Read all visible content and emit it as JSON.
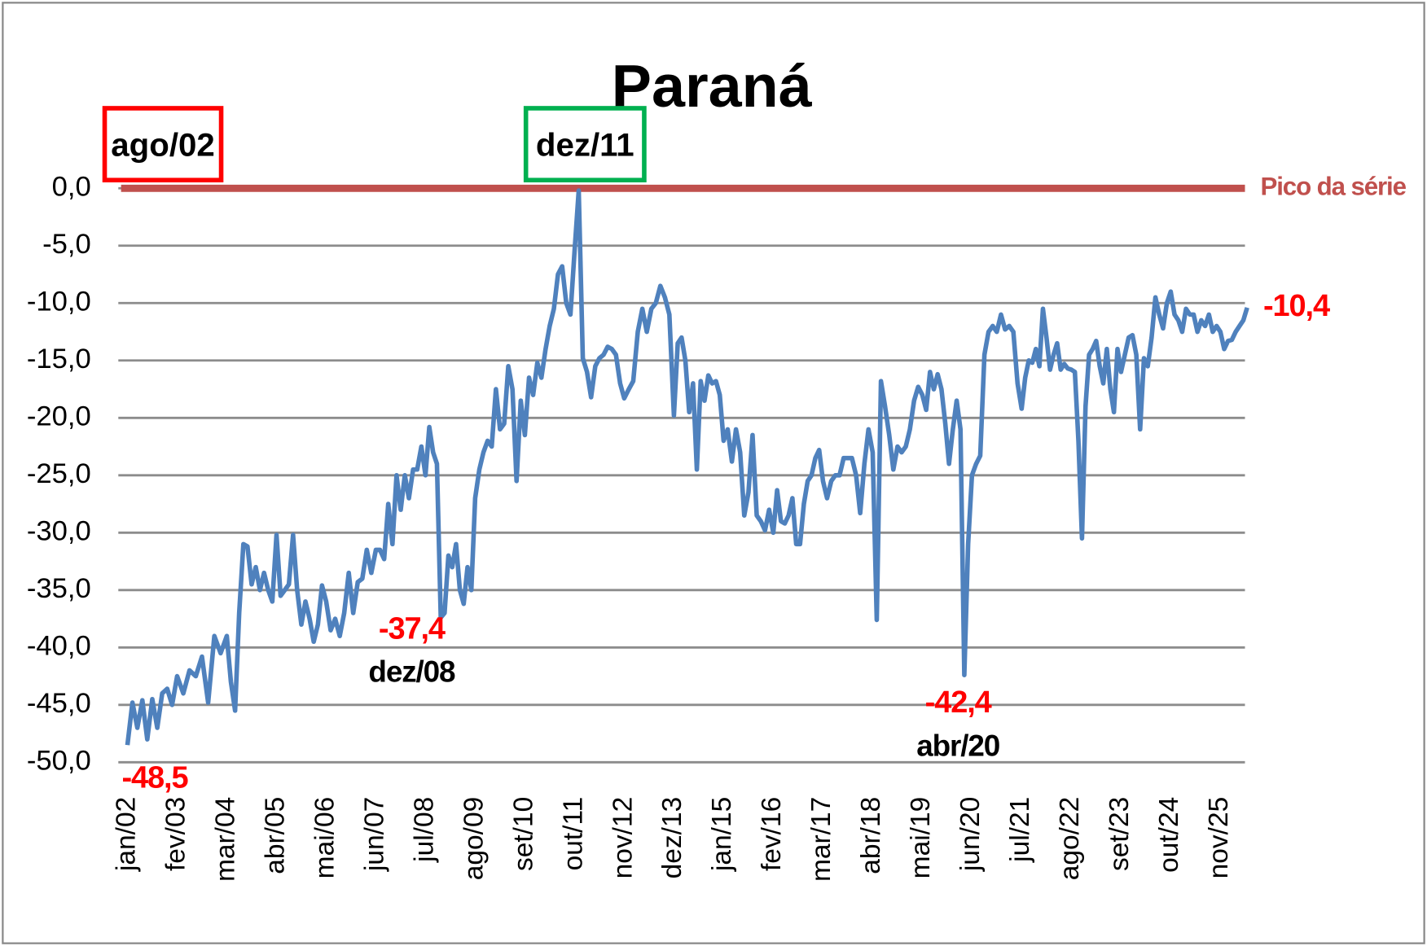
{
  "chart_data": {
    "type": "line",
    "title": "Paraná",
    "categories": [
      "jan/02",
      null,
      null,
      null,
      null,
      null,
      null,
      null,
      null,
      null,
      "fev/03",
      null,
      null,
      null,
      null,
      null,
      null,
      null,
      "mar/04",
      null,
      null,
      null,
      null,
      null,
      null,
      null,
      null,
      null,
      null,
      null,
      "abr/05",
      null,
      null,
      null,
      null,
      null,
      null,
      null,
      null,
      null,
      null,
      null,
      "mai/06",
      null,
      null,
      null,
      null,
      null,
      null,
      null,
      null,
      null,
      null,
      "jun/07",
      null,
      null,
      null,
      null,
      null,
      null,
      null,
      null,
      null,
      null,
      null,
      "jul/08",
      null,
      null,
      null,
      null,
      null,
      null,
      null,
      null,
      null,
      null,
      null,
      null,
      "ago/09",
      null,
      null,
      null,
      null,
      null,
      null,
      null,
      null,
      null,
      null,
      null,
      "set/10",
      null,
      null,
      null,
      null,
      null,
      null,
      null,
      null,
      null,
      null,
      null,
      "out/11",
      null,
      null,
      null,
      null,
      null,
      null,
      null,
      null,
      null,
      null,
      null,
      "nov/12",
      null,
      null,
      null,
      null,
      null,
      null,
      null,
      null,
      null,
      null,
      "dez/13",
      null,
      null,
      null,
      null,
      null,
      null,
      null,
      null,
      null,
      null,
      null,
      null,
      "jan/15",
      null,
      null,
      null,
      null,
      null,
      null,
      null,
      null,
      null,
      null,
      null,
      "fev/16",
      null,
      null,
      null,
      null,
      null,
      null,
      null,
      null,
      null,
      null,
      null,
      null,
      "mar/17",
      null,
      null,
      null,
      null,
      null,
      null,
      null,
      null,
      null,
      null,
      null,
      "abr/18",
      null,
      null,
      null,
      null,
      null,
      null,
      null,
      null,
      null,
      null,
      null,
      "mai/19",
      null,
      null,
      null,
      null,
      null,
      null,
      null,
      null,
      null,
      null,
      null,
      null,
      "jun/20",
      null,
      null,
      null,
      null,
      null,
      null,
      null,
      null,
      null,
      null,
      null,
      "jul/21",
      null,
      null,
      null,
      null,
      null,
      null,
      null,
      null,
      null,
      null,
      null,
      null,
      null,
      "ago/22",
      null,
      null,
      null,
      null,
      null,
      null,
      null,
      null,
      null,
      null,
      null,
      null,
      null,
      "set/23",
      null,
      null,
      null,
      null,
      null,
      null,
      null,
      null,
      null,
      null,
      null,
      null,
      "out/24",
      null,
      null,
      null,
      null,
      null,
      null,
      null,
      null,
      null,
      null,
      null,
      null,
      "nov/25",
      null,
      null,
      null,
      null,
      null,
      null,
      null
    ],
    "series": [
      {
        "color": "#4f81bd",
        "values": [
          -48.5,
          -44.8,
          -47,
          -44.6,
          -48,
          -44.5,
          -47,
          -44,
          -43.6,
          -45,
          -42.5,
          -44,
          -42,
          -42.5,
          -40.8,
          -44.8,
          -39,
          -40.5,
          -39,
          -43,
          -45.5,
          -37,
          -31,
          -31.2,
          -34.5,
          -33,
          -35,
          -33.5,
          -35,
          -36,
          -30.2,
          -35.5,
          -35,
          -34.5,
          -30.2,
          -35,
          -38,
          -36,
          -37.5,
          -39.5,
          -38,
          -34.6,
          -36,
          -38.5,
          -37.5,
          -39,
          -37,
          -33.5,
          -37,
          -34.3,
          -34,
          -31.5,
          -33.5,
          -31.5,
          -31.5,
          -32.3,
          -27.5,
          -31,
          -25,
          -28,
          -25,
          -27,
          -24.5,
          -24.5,
          -22.5,
          -25,
          -20.8,
          -23,
          -24,
          -37.4,
          -37,
          -32,
          -33,
          -31,
          -35,
          -36.2,
          -33,
          -35,
          -27,
          -24.5,
          -23,
          -22,
          -22.5,
          -17.5,
          -21,
          -20.5,
          -15.5,
          -17.5,
          -25.5,
          -18.5,
          -21.5,
          -16.5,
          -18,
          -15.2,
          -16.5,
          -14,
          -12,
          -10.5,
          -7.5,
          -6.8,
          -10,
          -11,
          -5.5,
          -0.2,
          -14.8,
          -16,
          -18.2,
          -15.5,
          -14.8,
          -14.5,
          -13.8,
          -14,
          -14.5,
          -17,
          -18.3,
          -17.5,
          -16.8,
          -12.5,
          -10.5,
          -12.5,
          -10.5,
          -10,
          -8.5,
          -9.5,
          -11,
          -19.8,
          -13.5,
          -13,
          -15,
          -19.5,
          -17,
          -24.5,
          -16.8,
          -18.5,
          -16.3,
          -17,
          -16.8,
          -18,
          -22,
          -21,
          -23.8,
          -21,
          -23,
          -28.5,
          -26.5,
          -21.5,
          -28.5,
          -29,
          -29.8,
          -28,
          -30,
          -26.3,
          -29,
          -29.2,
          -28.5,
          -27,
          -31,
          -31,
          -27.5,
          -25.5,
          -25,
          -23.5,
          -22.8,
          -25.5,
          -27,
          -25.5,
          -25,
          -25,
          -23.5,
          -23.5,
          -23.5,
          -25,
          -28.3,
          -24,
          -21,
          -23,
          -37.6,
          -16.8,
          -19,
          -21.5,
          -24.5,
          -22.5,
          -23,
          -22.5,
          -21,
          -18.5,
          -17.3,
          -18,
          -19.3,
          -16,
          -17.5,
          -16.2,
          -17.5,
          -20.5,
          -24,
          -21,
          -18.5,
          -21,
          -42.4,
          -31,
          -25,
          -24,
          -23.3,
          -14.5,
          -12.5,
          -12,
          -12.5,
          -11,
          -12.3,
          -12,
          -12.5,
          -17,
          -19.2,
          -16.5,
          -15,
          -15.2,
          -14,
          -15.5,
          -10.5,
          -13,
          -15.8,
          -14.5,
          -13.5,
          -15.8,
          -15.3,
          -15.7,
          -15.8,
          -16,
          -22,
          -30.5,
          -19,
          -14.5,
          -14,
          -13.3,
          -15.5,
          -17,
          -14,
          -17.5,
          -19.5,
          -14,
          -16,
          -14.5,
          -13,
          -12.8,
          -14.5,
          -21,
          -14.8,
          -15.5,
          -13,
          -9.5,
          -11,
          -12.2,
          -10,
          -9,
          -11,
          -11.5,
          -12.5,
          -10.5,
          -11,
          -11,
          -12.5,
          -11.5,
          -12,
          -11,
          -12.5,
          -12,
          -12.5,
          -14,
          -13.3,
          -13.2,
          -12.5,
          -12,
          -11.5,
          -10.4
        ]
      }
    ],
    "ylim": [
      -50,
      0
    ],
    "yticks": [
      {
        "value": 0,
        "label": "0,0"
      },
      {
        "value": -5,
        "label": "-5,0"
      },
      {
        "value": -10,
        "label": "-10,0"
      },
      {
        "value": -15,
        "label": "-15,0"
      },
      {
        "value": -20,
        "label": "-20,0"
      },
      {
        "value": -25,
        "label": "-25,0"
      },
      {
        "value": -30,
        "label": "-30,0"
      },
      {
        "value": -35,
        "label": "-35,0"
      },
      {
        "value": -40,
        "label": "-40,0"
      },
      {
        "value": -45,
        "label": "-45,0"
      },
      {
        "value": -50,
        "label": "-50,0"
      }
    ],
    "grid": true,
    "reference_line": {
      "value": 0,
      "label": "Pico da série",
      "color": "#c0504d"
    },
    "boxes": [
      {
        "text": "ago/02",
        "color": "#ff0000"
      },
      {
        "text": "dez/11",
        "color": "#00b050"
      }
    ],
    "annotations": [
      {
        "value": -48.5,
        "label": "-48,5"
      },
      {
        "value": -37.4,
        "label": "-37,4",
        "date": "dez/08"
      },
      {
        "value": -42.4,
        "label": "-42,4",
        "date": "abr/20"
      },
      {
        "value": -10.4,
        "label": "-10,4"
      }
    ]
  }
}
